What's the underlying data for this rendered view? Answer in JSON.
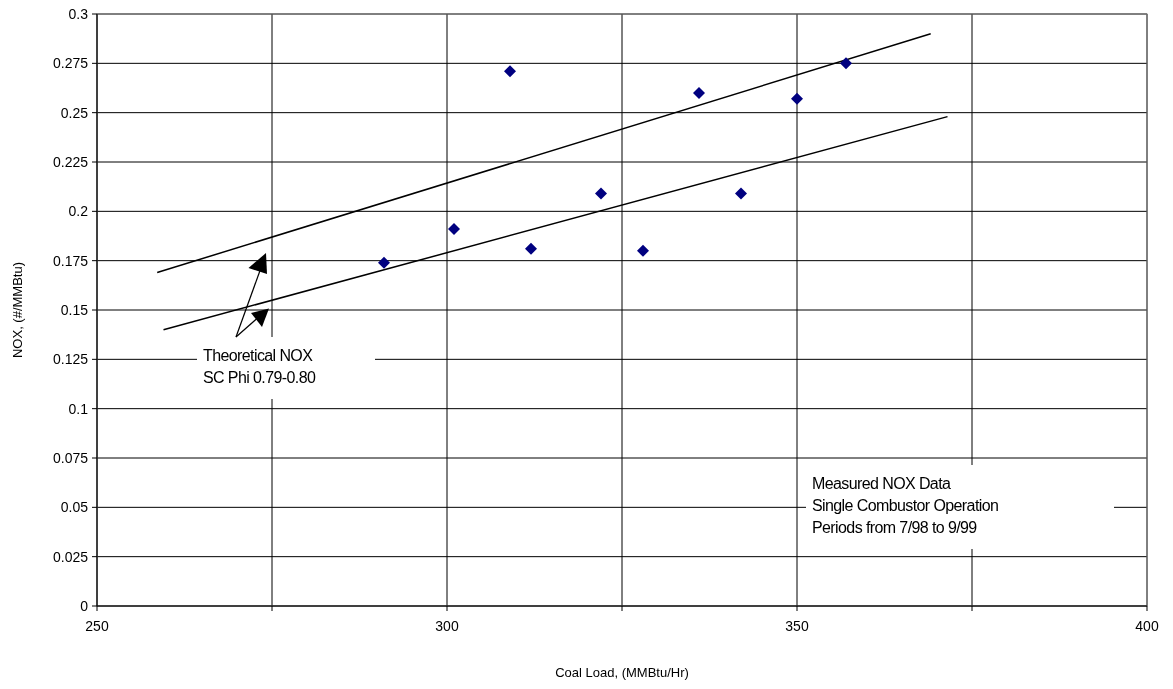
{
  "chart_data": {
    "type": "scatter",
    "xlabel": "Coal Load, (MMBtu/Hr)",
    "ylabel": "NOX, (#/MMBtu)",
    "xlim": [
      250,
      400
    ],
    "xticks": [
      250,
      {
        "value": 275,
        "label": null
      },
      300,
      {
        "value": 325,
        "label": null
      },
      350,
      {
        "value": 375,
        "label": null
      },
      400
    ],
    "ylim": [
      0,
      0.3
    ],
    "yticks": [
      0,
      0.025,
      0.05,
      0.075,
      0.1,
      0.125,
      0.15,
      0.175,
      0.2,
      0.225,
      0.25,
      0.275,
      0.3
    ],
    "grid": true,
    "marker": "diamond",
    "annotations": [
      "Theoretical NOX\nSC Phi 0.79-0.80",
      "Measured NOX Data\nSingle Combustor Operation\nPeriods from 7/98 to 9/99"
    ],
    "series": [
      {
        "color": "#000080",
        "x": [
          291,
          301,
          309,
          312,
          322,
          328,
          336,
          342,
          350,
          357
        ],
        "values": [
          0.174,
          0.191,
          0.271,
          0.181,
          0.209,
          0.18,
          0.26,
          0.209,
          0.257,
          0.275
        ]
      },
      {
        "type": "line",
        "color": "#000000",
        "line_style": "solid",
        "marker": "none",
        "x": [
          258.6,
          369.1
        ],
        "values": [
          0.169,
          0.29
        ]
      },
      {
        "type": "line",
        "color": "#000000",
        "line_style": "solid",
        "marker": "none",
        "x": [
          259.5,
          371.5
        ],
        "values": [
          0.14,
          0.248
        ]
      }
    ]
  }
}
